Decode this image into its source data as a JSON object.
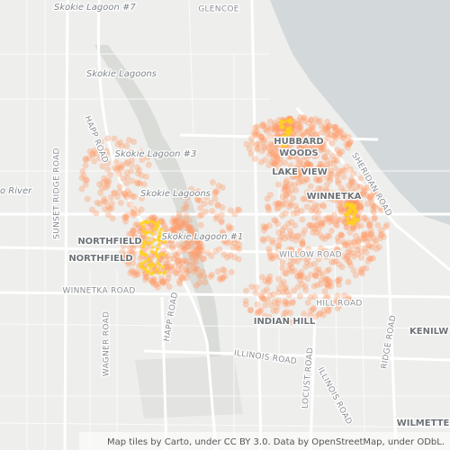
{
  "map": {
    "labels": [
      "Skokie Lagoon #7",
      "GLENCOE",
      "Skokie Lagoons",
      "HUBBARD",
      "WOODS",
      "Skokie Lagoon #3",
      "LAKE VIEW",
      "Skokie Lagoons",
      "WINNETKA",
      "SHERIDAN ROAD",
      "SUNSET RIDGE ROAD",
      "HAPP ROAD",
      "o River",
      "NORTHFIELD",
      "NORTHFIELD",
      "Skokie Lagoon #1",
      "WILLOW ROAD",
      "WINNETKA ROAD",
      "HILL ROAD",
      "INDIAN HILL",
      "HAPP ROAD",
      "WAGNER ROAD",
      "RIDGE ROAD",
      "KENILW",
      "ILLINOIS ROAD",
      "LOCUST ROAD",
      "ILLINOIS ROAD",
      "WILMETTE"
    ],
    "attribution": "Map tiles by Carto, under CC BY 3.0. Data by OpenStreetMap, under ODbL."
  }
}
